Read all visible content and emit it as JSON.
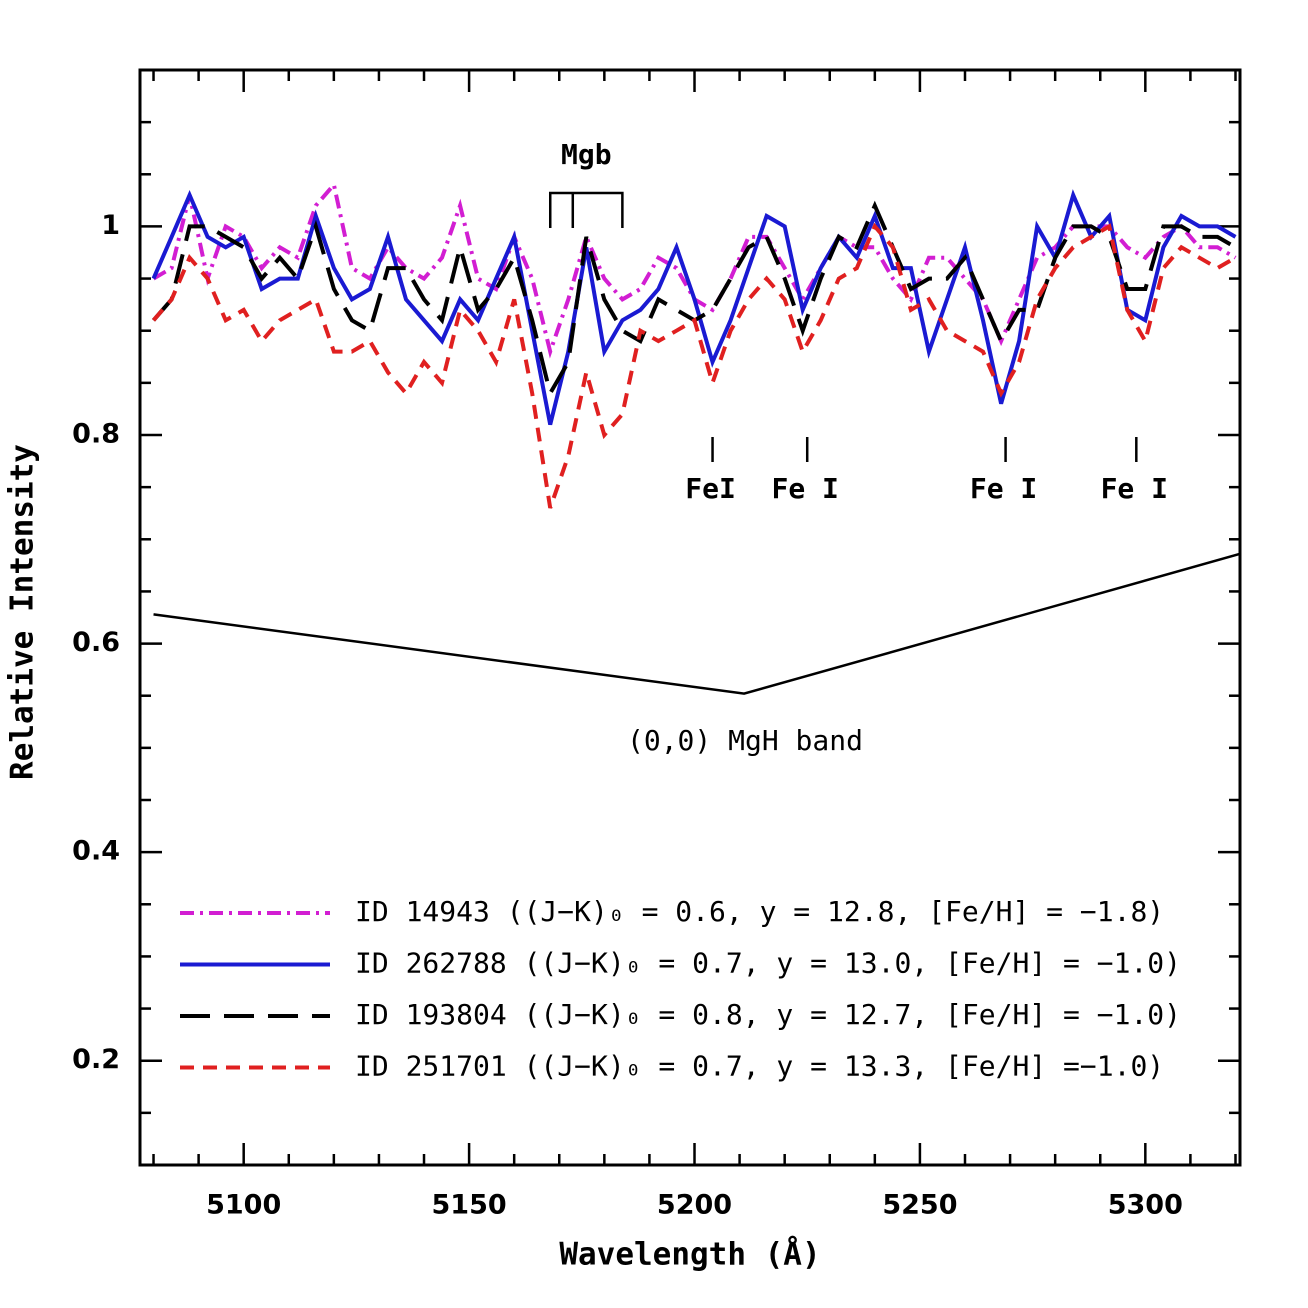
{
  "chart_data": {
    "type": "line",
    "xlabel": "Wavelength (Å)",
    "ylabel": "Relative Intensity",
    "xlim": [
      5077,
      5321
    ],
    "ylim": [
      0.1,
      1.15
    ],
    "xticks": [
      5100,
      5150,
      5200,
      5250,
      5300
    ],
    "yticks": [
      0.2,
      0.4,
      0.6,
      0.8,
      1
    ],
    "xminorticks": [
      5080,
      5090,
      5110,
      5120,
      5130,
      5140,
      5160,
      5170,
      5180,
      5190,
      5210,
      5220,
      5230,
      5240,
      5260,
      5270,
      5280,
      5290,
      5310,
      5320
    ],
    "yminorticks": [
      0.15,
      0.25,
      0.3,
      0.35,
      0.45,
      0.5,
      0.55,
      0.65,
      0.7,
      0.75,
      0.85,
      0.9,
      0.95,
      1.05,
      1.1
    ],
    "legend": "lower left",
    "x": [
      5080,
      5084,
      5088,
      5092,
      5096,
      5100,
      5104,
      5108,
      5112,
      5116,
      5120,
      5124,
      5128,
      5132,
      5136,
      5140,
      5144,
      5148,
      5152,
      5156,
      5160,
      5164,
      5168,
      5172,
      5176,
      5180,
      5184,
      5188,
      5192,
      5196,
      5200,
      5204,
      5208,
      5212,
      5216,
      5220,
      5224,
      5228,
      5232,
      5236,
      5240,
      5244,
      5248,
      5252,
      5256,
      5260,
      5264,
      5268,
      5272,
      5276,
      5280,
      5284,
      5288,
      5292,
      5296,
      5300,
      5304,
      5308,
      5312,
      5316,
      5320
    ],
    "series": [
      {
        "name": "ID 14943  ((J−K)₀ = 0.6,  y = 12.8,  [Fe/H] = −1.8)",
        "color": "#d21ed2",
        "linestyle": "dashdot",
        "values": [
          0.95,
          0.96,
          1.03,
          0.95,
          1.0,
          0.99,
          0.96,
          0.98,
          0.97,
          1.02,
          1.04,
          0.96,
          0.95,
          0.98,
          0.96,
          0.95,
          0.97,
          1.02,
          0.95,
          0.94,
          0.99,
          0.95,
          0.88,
          0.93,
          0.99,
          0.95,
          0.93,
          0.94,
          0.97,
          0.96,
          0.93,
          0.92,
          0.95,
          0.99,
          0.99,
          0.96,
          0.93,
          0.96,
          0.99,
          0.98,
          0.98,
          0.95,
          0.93,
          0.97,
          0.97,
          0.95,
          0.93,
          0.89,
          0.93,
          0.97,
          0.98,
          1.0,
          1.0,
          1.0,
          0.98,
          0.97,
          0.99,
          1.0,
          0.98,
          0.98,
          0.97
        ]
      },
      {
        "name": "ID 262788  ((J−K)₀ = 0.7,  y = 13.0,  [Fe/H] = −1.0)",
        "color": "#1a1ad2",
        "linestyle": "solid",
        "values": [
          0.95,
          0.99,
          1.03,
          0.99,
          0.98,
          0.99,
          0.94,
          0.95,
          0.95,
          1.01,
          0.96,
          0.93,
          0.94,
          0.99,
          0.93,
          0.91,
          0.89,
          0.93,
          0.91,
          0.95,
          0.99,
          0.9,
          0.81,
          0.88,
          0.98,
          0.88,
          0.91,
          0.92,
          0.94,
          0.98,
          0.93,
          0.87,
          0.91,
          0.96,
          1.01,
          1.0,
          0.92,
          0.96,
          0.99,
          0.97,
          1.01,
          0.96,
          0.96,
          0.88,
          0.93,
          0.98,
          0.91,
          0.83,
          0.89,
          1.0,
          0.97,
          1.03,
          0.99,
          1.01,
          0.92,
          0.91,
          0.98,
          1.01,
          1.0,
          1.0,
          0.99
        ]
      },
      {
        "name": "ID 193804  ((J−K)₀ = 0.8,  y = 12.7,  [Fe/H] = −1.0)",
        "color": "#000000",
        "linestyle": "longdash",
        "values": [
          0.91,
          0.93,
          1.0,
          1.0,
          0.99,
          0.98,
          0.95,
          0.97,
          0.95,
          1.0,
          0.94,
          0.91,
          0.9,
          0.96,
          0.96,
          0.93,
          0.91,
          0.98,
          0.92,
          0.94,
          0.97,
          0.91,
          0.84,
          0.87,
          0.99,
          0.93,
          0.9,
          0.89,
          0.93,
          0.92,
          0.91,
          0.92,
          0.95,
          0.98,
          0.99,
          0.95,
          0.9,
          0.95,
          0.99,
          0.98,
          1.02,
          0.98,
          0.94,
          0.95,
          0.95,
          0.97,
          0.93,
          0.89,
          0.92,
          0.92,
          0.97,
          1.0,
          1.0,
          0.99,
          0.94,
          0.94,
          1.0,
          1.0,
          0.99,
          0.99,
          0.98
        ]
      },
      {
        "name": "ID 251701  ((J−K)₀ = 0.7,  y = 13.3,  [Fe/H] =−1.0)",
        "color": "#e02020",
        "linestyle": "dash",
        "values": [
          0.91,
          0.93,
          0.97,
          0.95,
          0.91,
          0.92,
          0.89,
          0.91,
          0.92,
          0.93,
          0.88,
          0.88,
          0.89,
          0.86,
          0.84,
          0.87,
          0.85,
          0.92,
          0.9,
          0.87,
          0.93,
          0.84,
          0.73,
          0.78,
          0.86,
          0.8,
          0.82,
          0.9,
          0.89,
          0.9,
          0.91,
          0.85,
          0.9,
          0.93,
          0.95,
          0.93,
          0.88,
          0.91,
          0.95,
          0.96,
          1.0,
          0.98,
          0.92,
          0.93,
          0.9,
          0.89,
          0.88,
          0.84,
          0.87,
          0.93,
          0.96,
          0.98,
          0.99,
          1.0,
          0.92,
          0.89,
          0.96,
          0.98,
          0.97,
          0.96,
          0.97
        ]
      }
    ],
    "mgb": {
      "label": "Mgb",
      "x": [
        5168,
        5173,
        5184
      ]
    },
    "fe_lines": [
      {
        "label": "FeI",
        "x": 5204
      },
      {
        "label": "Fe I",
        "x": 5225
      },
      {
        "label": "Fe I",
        "x": 5269
      },
      {
        "label": "Fe I",
        "x": 5298
      }
    ],
    "band": {
      "label": "(0,0) MgH band",
      "x": [
        5080,
        5211,
        5321
      ],
      "y": [
        0.628,
        0.552,
        0.686
      ]
    }
  }
}
